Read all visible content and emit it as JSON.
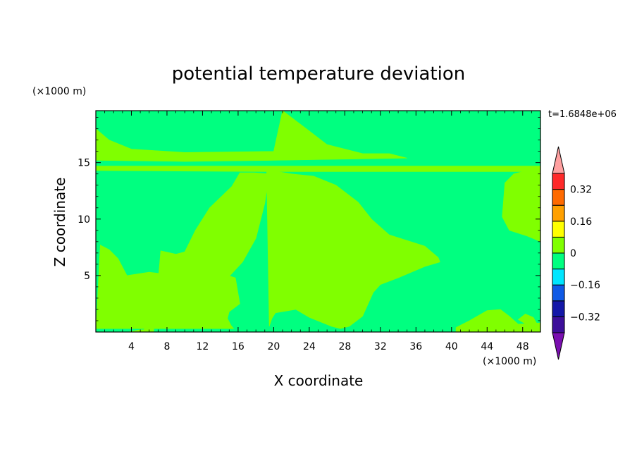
{
  "chart_data": {
    "type": "heatmap",
    "title": "potential temperature deviation",
    "xlabel": "X coordinate",
    "ylabel": "Z coordinate",
    "x_unit": "(×1000 m)",
    "y_unit": "(×1000 m)",
    "time_label": "t=1.6848e+06",
    "xlim": [
      0,
      50
    ],
    "ylim": [
      0,
      19.6
    ],
    "x_ticks": [
      4,
      8,
      12,
      16,
      20,
      24,
      28,
      32,
      36,
      40,
      44,
      48
    ],
    "y_ticks": [
      5,
      10,
      15
    ],
    "colorbar": {
      "levels": [
        -0.48,
        -0.4,
        -0.32,
        -0.24,
        -0.16,
        -0.08,
        0,
        0.08,
        0.16,
        0.24,
        0.32,
        0.4
      ],
      "labels": [
        {
          "value": 0.32,
          "text": "0.32"
        },
        {
          "value": 0.16,
          "text": "0.16"
        },
        {
          "value": 0,
          "text": "0"
        },
        {
          "value": -0.16,
          "text": "−0.16"
        },
        {
          "value": -0.32,
          "text": "−0.32"
        }
      ],
      "colors_bottom_to_top": [
        "#7a0fb0",
        "#3d0f9a",
        "#1418a8",
        "#0f5ae6",
        "#00e6ff",
        "#00ff80",
        "#80ff00",
        "#ffff00",
        "#ffa000",
        "#ff6a00",
        "#ff2a2a",
        "#ffa0a0"
      ]
    },
    "field": {
      "background_class": "-0.08 to 0",
      "background_color": "#00ff80",
      "positive_class": "0 to 0.08",
      "positive_color": "#80ff00",
      "regions_0_to_0.08": [
        {
          "name": "upper-band",
          "x": [
            0,
            1.5,
            4,
            10,
            20,
            21,
            24,
            26,
            30,
            33,
            35,
            20,
            10,
            0
          ],
          "z": [
            18,
            17,
            16.2,
            15.9,
            16,
            19.6,
            17.8,
            16.6,
            15.8,
            15.8,
            15.4,
            15.2,
            15.1,
            15.2
          ]
        },
        {
          "name": "lower-band",
          "x": [
            0,
            20,
            30,
            50,
            50,
            0
          ],
          "z": [
            14.3,
            14.2,
            14.2,
            14.2,
            14.7,
            14.7
          ]
        },
        {
          "name": "left-lobe",
          "x": [
            0,
            0.5,
            1.5,
            2.5,
            3.5,
            6,
            10,
            14,
            15.7,
            16.2,
            15,
            14.8,
            15.2,
            15.5,
            3.6,
            0
          ],
          "z": [
            0,
            7.7,
            7.3,
            6.5,
            5,
            5.3,
            4.9,
            5.2,
            4.8,
            2.5,
            1.8,
            1.2,
            0.6,
            0.3,
            0.3,
            0.3
          ]
        },
        {
          "name": "mid-left-block",
          "x": [
            3.6,
            4.5,
            6.5,
            7.3,
            9,
            10,
            11.2,
            12.8,
            15.3,
            16.2,
            17.8,
            19.5,
            19,
            18,
            16.5,
            14.5,
            13.5,
            12,
            11.5,
            10.2,
            8,
            6.3,
            5.5,
            5.4,
            5,
            3.6
          ],
          "z": [
            0,
            0,
            0,
            7.2,
            6.9,
            7.1,
            9,
            11,
            12.9,
            14.1,
            14.1,
            14,
            11.4,
            8.3,
            6.2,
            4.5,
            2,
            1.5,
            0.8,
            0.6,
            0.3,
            0.3,
            0.3,
            0.2,
            0.2,
            0
          ]
        },
        {
          "name": "central-lobe",
          "x": [
            19.2,
            20.5,
            22,
            24.5,
            27,
            29.5,
            31,
            33,
            37,
            38.5,
            38.7,
            37,
            34,
            32,
            31.2,
            30,
            28.5,
            27.5,
            26.5,
            24,
            22.5,
            20.2,
            19.8,
            19.5,
            19.2
          ],
          "z": [
            14.5,
            14.2,
            14,
            13.8,
            13,
            11.5,
            10,
            8.6,
            7.6,
            6.6,
            6.2,
            5.8,
            4.8,
            4.2,
            3.5,
            1.4,
            0.5,
            0.3,
            0.5,
            1.3,
            2,
            1.7,
            1.2,
            0.5,
            14.5
          ]
        },
        {
          "name": "right-top-lobe",
          "x": [
            46,
            47,
            48.5,
            50,
            50,
            48.5,
            46.5,
            45.7,
            46
          ],
          "z": [
            13.2,
            14,
            14.3,
            14.3,
            8,
            8.5,
            9,
            10.2,
            13.2
          ]
        },
        {
          "name": "right-bottom-lobe",
          "x": [
            40.5,
            42,
            44,
            45.5,
            46.5,
            47.5,
            50,
            50,
            40.5
          ],
          "z": [
            0.4,
            1,
            1.9,
            2,
            1.4,
            0.7,
            0.8,
            0,
            0
          ]
        },
        {
          "name": "far-right-bump",
          "x": [
            47.5,
            48.3,
            49.2,
            49.7,
            48.8,
            47.5
          ],
          "z": [
            1.1,
            1.6,
            1.3,
            0.6,
            0.5,
            1.1
          ]
        }
      ]
    }
  }
}
